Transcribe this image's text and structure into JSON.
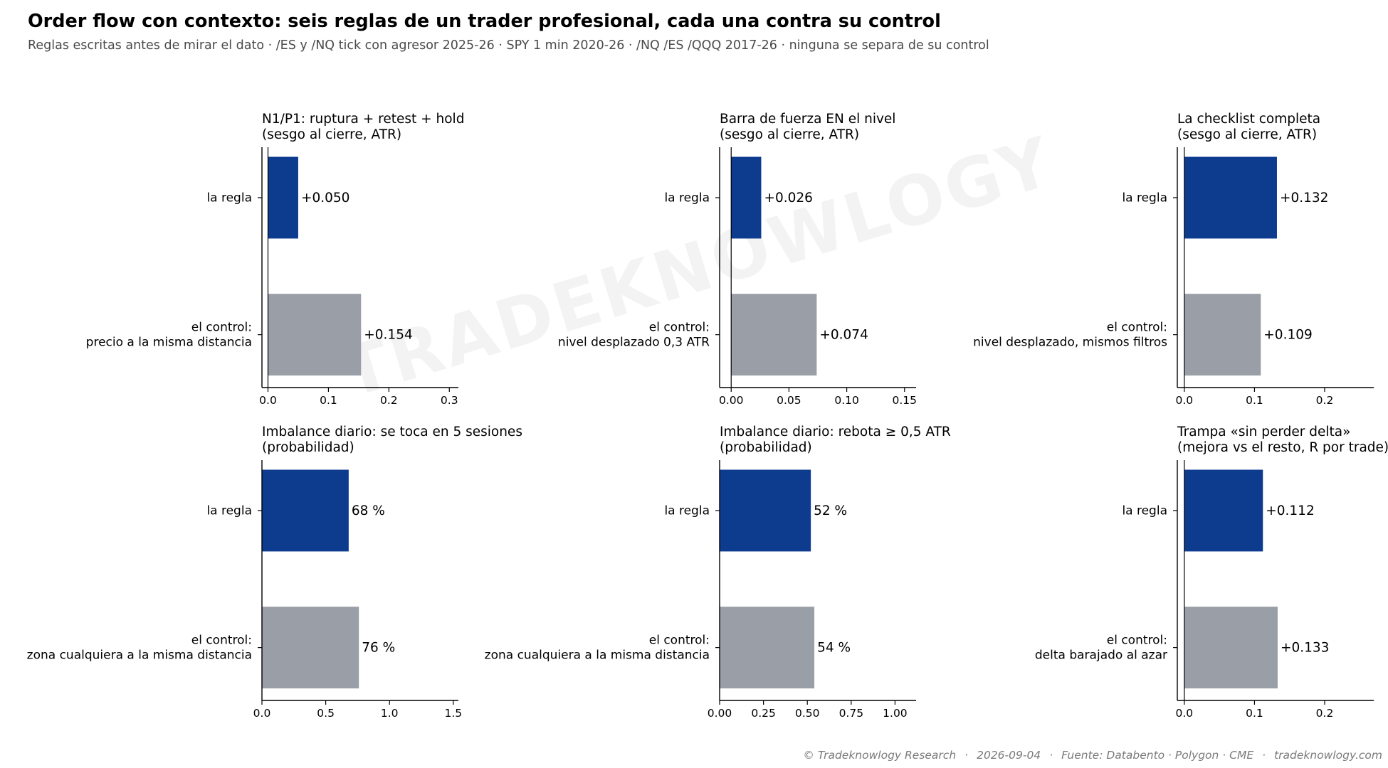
{
  "header": {
    "title": "Order flow con contexto: seis reglas de un trader profesional, cada una contra su control",
    "subtitle": "Reglas escritas antes de mirar el dato · /ES y /NQ tick con agresor 2025-26 · SPY 1 min 2020-26 · /NQ /ES /QQQ 2017-26 · ninguna se separa de su control"
  },
  "watermark": "TRADEKNOWLOGY",
  "colors": {
    "rule": "#0d3b8e",
    "control": "#9a9ea6",
    "axis": "#000000"
  },
  "chart_data": [
    {
      "type": "bar",
      "orientation": "horizontal",
      "title": "N1/P1: ruptura + retest + hold\n(sesgo al cierre, ATR)",
      "categories": [
        "la regla",
        "el control:\nprecio a la misma distancia"
      ],
      "values": [
        0.05,
        0.154
      ],
      "value_labels": [
        "+0.050",
        "+0.154"
      ],
      "xlim": [
        -0.01,
        0.315
      ],
      "xticks": [
        0,
        0.1,
        0.2,
        0.3
      ],
      "xtick_labels": [
        "0.0",
        "0.1",
        "0.2",
        "0.3"
      ],
      "zero_line": true
    },
    {
      "type": "bar",
      "orientation": "horizontal",
      "title": "Barra de fuerza EN el nivel\n(sesgo al cierre, ATR)",
      "categories": [
        "la regla",
        "el control:\nnivel desplazado 0,3 ATR"
      ],
      "values": [
        0.026,
        0.074
      ],
      "value_labels": [
        "+0.026",
        "+0.074"
      ],
      "xlim": [
        -0.01,
        0.16
      ],
      "xticks": [
        0,
        0.05,
        0.1,
        0.15
      ],
      "xtick_labels": [
        "0.00",
        "0.05",
        "0.10",
        "0.15"
      ],
      "zero_line": true
    },
    {
      "type": "bar",
      "orientation": "horizontal",
      "title": "La checklist completa\n(sesgo al cierre, ATR)",
      "categories": [
        "la regla",
        "el control:\nnivel desplazado, mismos filtros"
      ],
      "values": [
        0.132,
        0.109
      ],
      "value_labels": [
        "+0.132",
        "+0.109"
      ],
      "xlim": [
        -0.01,
        0.27
      ],
      "xticks": [
        0,
        0.1,
        0.2
      ],
      "xtick_labels": [
        "0.0",
        "0.1",
        "0.2"
      ],
      "zero_line": true
    },
    {
      "type": "bar",
      "orientation": "horizontal",
      "title": "Imbalance diario: se toca en 5 sesiones\n(probabilidad)",
      "categories": [
        "la regla",
        "el control:\nzona cualquiera a la misma distancia"
      ],
      "values": [
        0.68,
        0.76
      ],
      "value_labels": [
        "68 %",
        "76 %"
      ],
      "xlim": [
        0,
        1.54
      ],
      "xticks": [
        0,
        0.5,
        1.0,
        1.5
      ],
      "xtick_labels": [
        "0.0",
        "0.5",
        "1.0",
        "1.5"
      ],
      "zero_line": false
    },
    {
      "type": "bar",
      "orientation": "horizontal",
      "title": "Imbalance diario: rebota ≥ 0,5 ATR\n(probabilidad)",
      "categories": [
        "la regla",
        "el control:\nzona cualquiera a la misma distancia"
      ],
      "values": [
        0.52,
        0.54
      ],
      "value_labels": [
        "52 %",
        "54 %"
      ],
      "xlim": [
        0,
        1.12
      ],
      "xticks": [
        0,
        0.25,
        0.5,
        0.75,
        1.0
      ],
      "xtick_labels": [
        "0.00",
        "0.25",
        "0.50",
        "0.75",
        "1.00"
      ],
      "zero_line": false
    },
    {
      "type": "bar",
      "orientation": "horizontal",
      "title": "Trampa «sin perder delta»\n(mejora vs el resto, R por trade)",
      "categories": [
        "la regla",
        "el control:\ndelta barajado al azar"
      ],
      "values": [
        0.112,
        0.133
      ],
      "value_labels": [
        "+0.112",
        "+0.133"
      ],
      "xlim": [
        -0.01,
        0.27
      ],
      "xticks": [
        0,
        0.1,
        0.2
      ],
      "xtick_labels": [
        "0.0",
        "0.1",
        "0.2"
      ],
      "zero_line": true
    }
  ],
  "footer": {
    "copyright": "© Tradeknowlogy Research",
    "date": "2026-09-04",
    "source": "Fuente: Databento · Polygon · CME",
    "site": "tradeknowlogy.com",
    "separator": "·"
  }
}
